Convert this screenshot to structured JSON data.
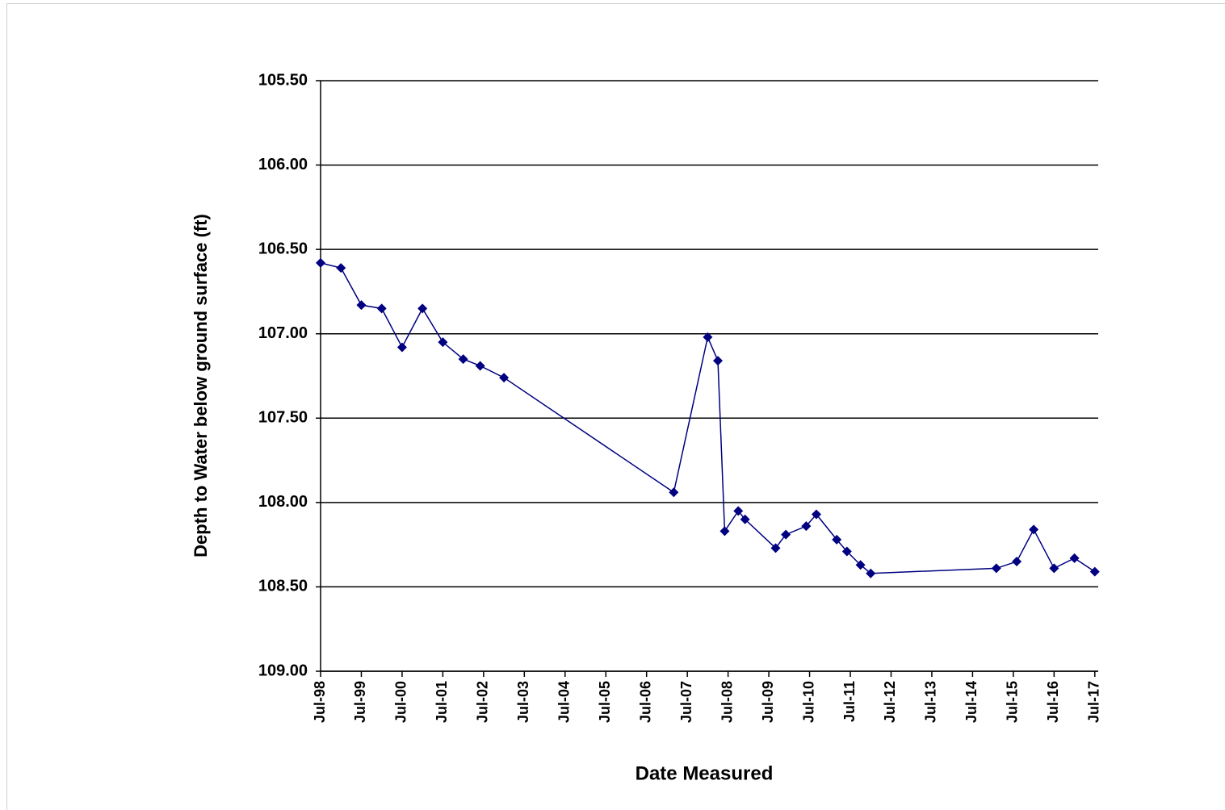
{
  "chart_data": {
    "type": "line",
    "x_label": "Date Measured",
    "y_label": "Depth to Water below ground surface (ft)",
    "x": [
      "1998-07",
      "1999-01",
      "1999-07",
      "2000-01",
      "2000-07",
      "2001-01",
      "2001-07",
      "2002-01",
      "2002-06",
      "2003-01",
      "2007-03",
      "2008-01",
      "2008-04",
      "2008-06",
      "2008-10",
      "2008-12",
      "2009-09",
      "2009-12",
      "2010-06",
      "2010-09",
      "2011-03",
      "2011-06",
      "2011-10",
      "2012-01",
      "2015-02",
      "2015-08",
      "2016-01",
      "2016-07",
      "2017-01",
      "2017-07"
    ],
    "series": [
      {
        "color": "#000080",
        "marker": "diamond",
        "values": [
          106.58,
          106.61,
          106.83,
          106.85,
          107.08,
          106.85,
          107.05,
          107.15,
          107.19,
          107.26,
          107.94,
          107.02,
          107.16,
          108.17,
          108.05,
          108.1,
          108.27,
          108.19,
          108.14,
          108.07,
          108.22,
          108.29,
          108.37,
          108.42,
          108.39,
          108.35,
          108.16,
          108.39,
          108.33,
          108.41
        ]
      }
    ],
    "xlim": [
      "1998-07",
      "2017-08"
    ],
    "xticks": [
      {
        "value": "1998-07",
        "label": "Jul-98"
      },
      {
        "value": "1999-07",
        "label": "Jul-99"
      },
      {
        "value": "2000-07",
        "label": "Jul-00"
      },
      {
        "value": "2001-07",
        "label": "Jul-01"
      },
      {
        "value": "2002-07",
        "label": "Jul-02"
      },
      {
        "value": "2003-07",
        "label": "Jul-03"
      },
      {
        "value": "2004-07",
        "label": "Jul-04"
      },
      {
        "value": "2005-07",
        "label": "Jul-05"
      },
      {
        "value": "2006-07",
        "label": "Jul-06"
      },
      {
        "value": "2007-07",
        "label": "Jul-07"
      },
      {
        "value": "2008-07",
        "label": "Jul-08"
      },
      {
        "value": "2009-07",
        "label": "Jul-09"
      },
      {
        "value": "2010-07",
        "label": "Jul-10"
      },
      {
        "value": "2011-07",
        "label": "Jul-11"
      },
      {
        "value": "2012-07",
        "label": "Jul-12"
      },
      {
        "value": "2013-07",
        "label": "Jul-13"
      },
      {
        "value": "2014-07",
        "label": "Jul-14"
      },
      {
        "value": "2015-07",
        "label": "Jul-15"
      },
      {
        "value": "2016-07",
        "label": "Jul-16"
      },
      {
        "value": "2017-07",
        "label": "Jul-17"
      }
    ],
    "ylim": [
      105.5,
      109
    ],
    "y_reversed": true,
    "yticks": [
      {
        "value": 105.5,
        "label": "105.50"
      },
      {
        "value": 106,
        "label": "106.00"
      },
      {
        "value": 106.5,
        "label": "106.50"
      },
      {
        "value": 107,
        "label": "107.00"
      },
      {
        "value": 107.5,
        "label": "107.50"
      },
      {
        "value": 108,
        "label": "108.00"
      },
      {
        "value": 108.5,
        "label": "108.50"
      },
      {
        "value": 109,
        "label": "109.00"
      }
    ],
    "grid": true
  }
}
